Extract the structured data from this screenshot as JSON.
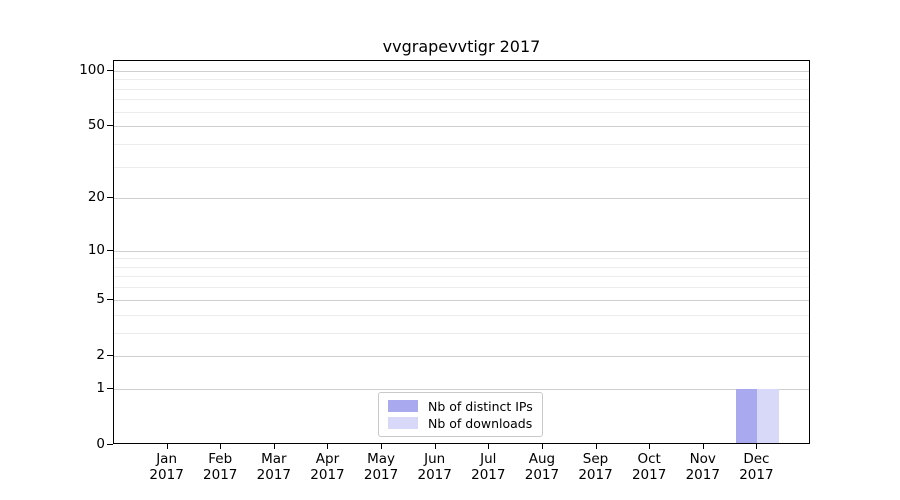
{
  "chart_data": {
    "type": "bar",
    "title": "vvgrapevvtigr 2017",
    "categories": [
      "Jan",
      "Feb",
      "Mar",
      "Apr",
      "May",
      "Jun",
      "Jul",
      "Aug",
      "Sep",
      "Oct",
      "Nov",
      "Dec"
    ],
    "category_year": "2017",
    "series": [
      {
        "name": "Nb of distinct IPs",
        "color": "#a9a9f0",
        "values": [
          0,
          0,
          0,
          0,
          0,
          0,
          0,
          0,
          0,
          0,
          0,
          1
        ]
      },
      {
        "name": "Nb of downloads",
        "color": "#d8d8f8",
        "values": [
          0,
          0,
          0,
          0,
          0,
          0,
          0,
          0,
          0,
          0,
          0,
          1
        ]
      }
    ],
    "y_axis": {
      "scale": "log10(1+x)",
      "ticks": [
        0,
        1,
        2,
        5,
        10,
        20,
        50,
        100
      ],
      "minor_ticks": [
        3,
        4,
        6,
        7,
        8,
        9,
        30,
        40,
        60,
        70,
        80,
        90
      ],
      "max": 113,
      "min": 0
    },
    "x_axis": {
      "label_line2": "2017"
    },
    "legend_position": "lower center",
    "grid": "on",
    "colors": {
      "major_grid": "#cfcfcf",
      "minor_grid": "#ececec",
      "spine": "#000000",
      "background": "#ffffff"
    }
  }
}
